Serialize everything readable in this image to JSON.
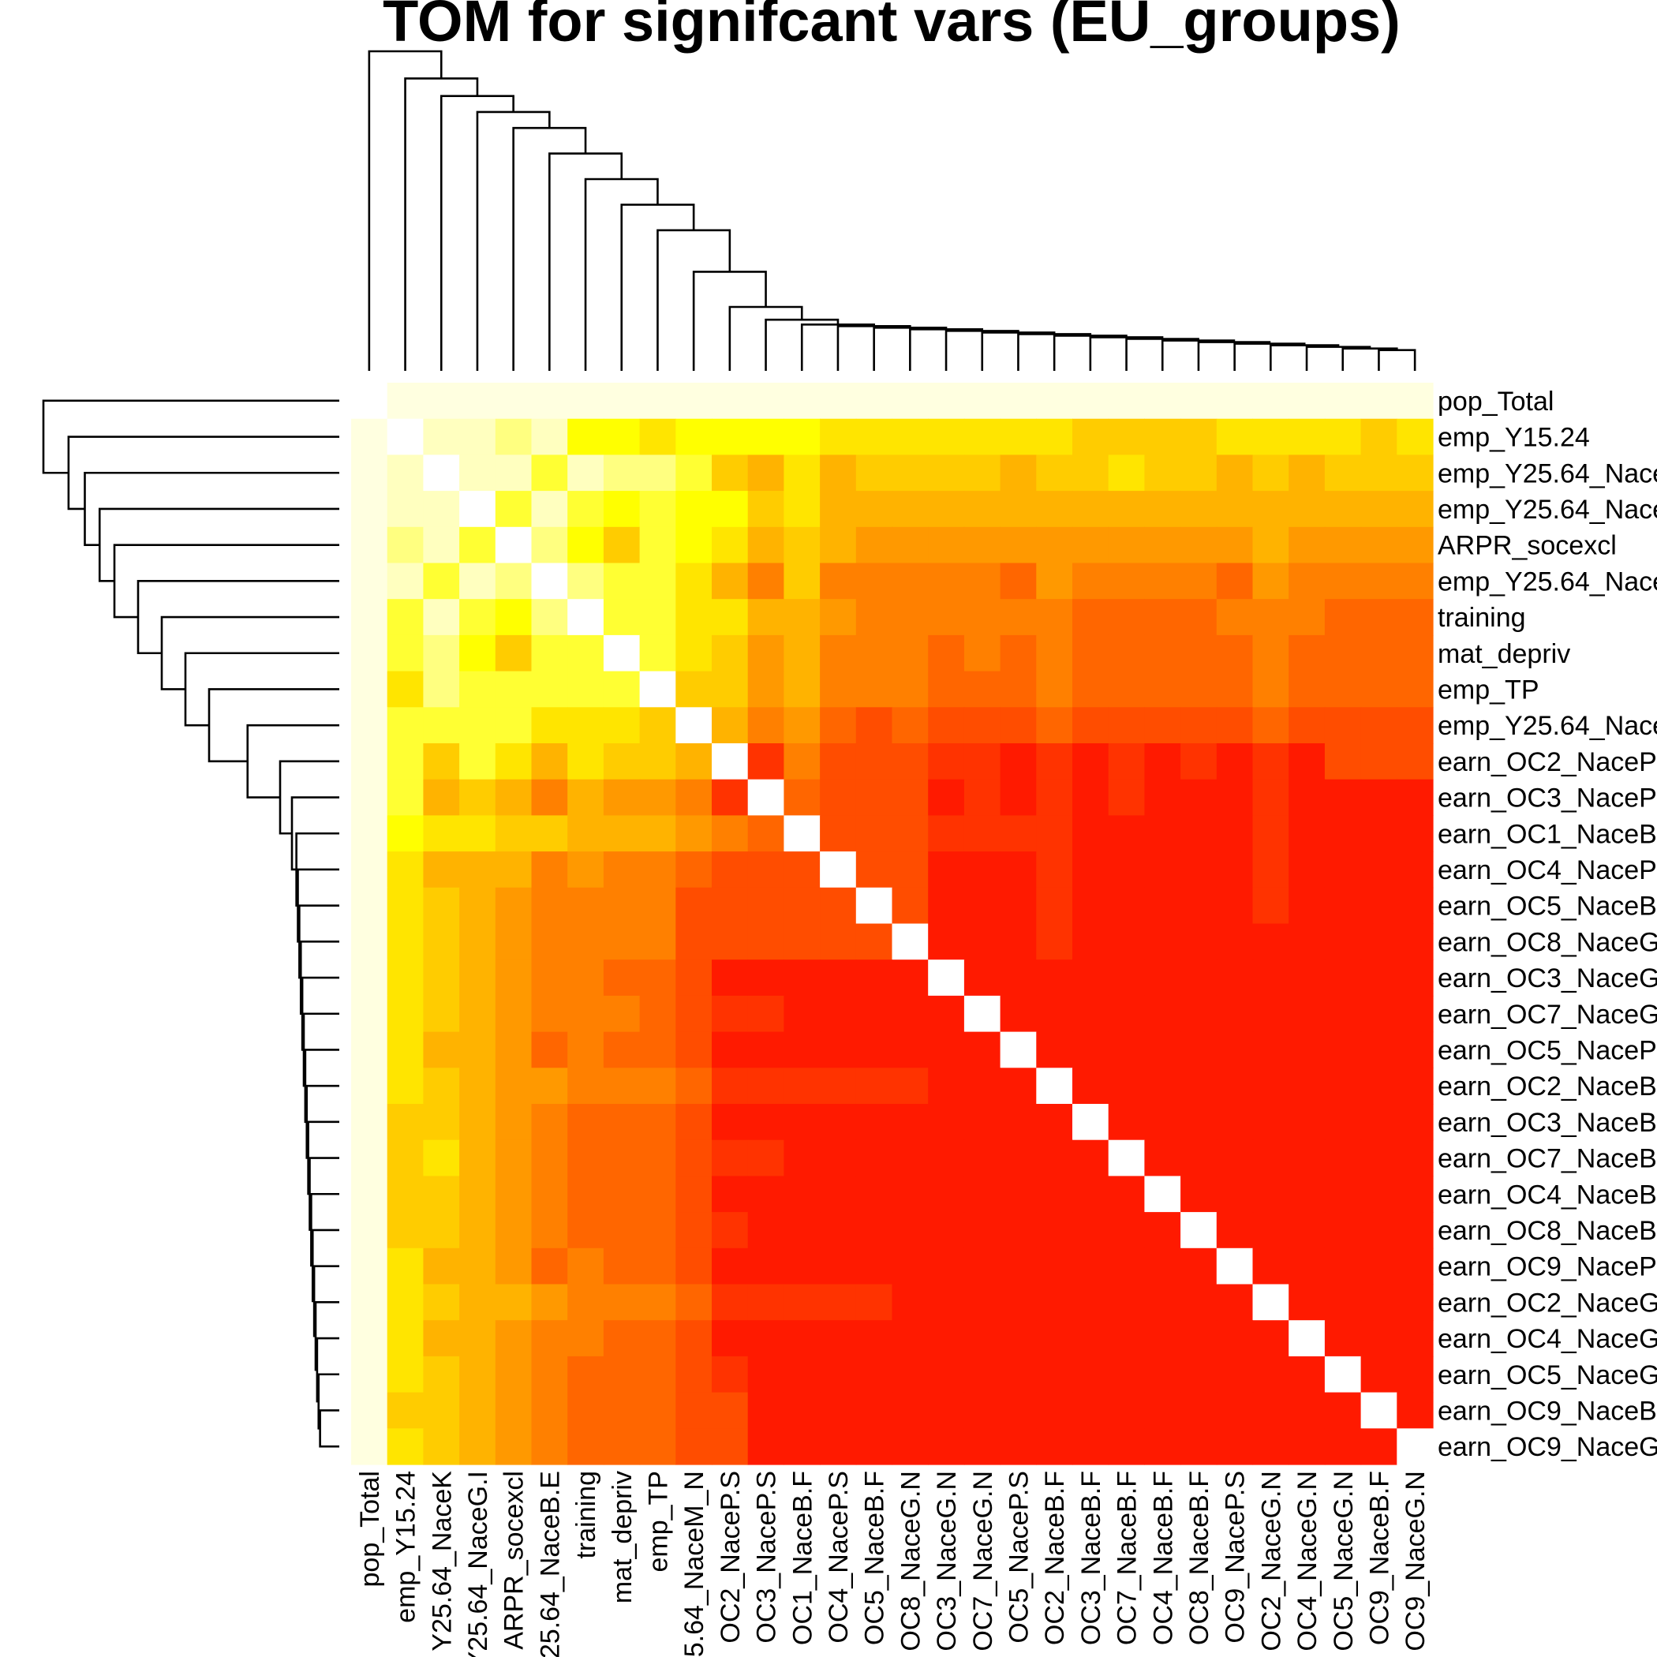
{
  "chart_data": {
    "type": "heatmap",
    "title": "TOM for signifcant vars (EU_groups)",
    "row_labels": [
      "pop_Total",
      "emp_Y15.24",
      "emp_Y25.64_Nace",
      "emp_Y25.64_Nace",
      "ARPR_socexcl",
      "emp_Y25.64_Nace",
      "training",
      "mat_depriv",
      "emp_TP",
      "emp_Y25.64_Nace",
      "earn_OC2_NaceP",
      "earn_OC3_NaceP",
      "earn_OC1_NaceB",
      "earn_OC4_NaceP",
      "earn_OC5_NaceB",
      "earn_OC8_NaceG",
      "earn_OC3_NaceG",
      "earn_OC7_NaceG",
      "earn_OC5_NaceP",
      "earn_OC2_NaceB",
      "earn_OC3_NaceB",
      "earn_OC7_NaceB",
      "earn_OC4_NaceB",
      "earn_OC8_NaceB",
      "earn_OC9_NaceP",
      "earn_OC2_NaceG",
      "earn_OC4_NaceG",
      "earn_OC5_NaceG",
      "earn_OC9_NaceB",
      "earn_OC9_NaceG"
    ],
    "col_labels": [
      "pop_Total",
      "emp_Y15.24",
      "Y25.64_NaceK",
      "Y25.64_NaceG.I",
      "ARPR_socexcl",
      "25.64_NaceB.E",
      "training",
      "mat_depriv",
      "emp_TP",
      "5.64_NaceM_N",
      "OC2_NaceP.S",
      "OC3_NaceP.S",
      "OC1_NaceB.F",
      "OC4_NaceP.S",
      "OC5_NaceB.F",
      "OC8_NaceG.N",
      "OC3_NaceG.N",
      "OC7_NaceG.N",
      "OC5_NaceP.S",
      "OC2_NaceB.F",
      "OC3_NaceB.F",
      "OC7_NaceB.F",
      "OC4_NaceB.F",
      "OC8_NaceB.F",
      "OC9_NaceP.S",
      "OC2_NaceG.N",
      "OC4_NaceG.N",
      "OC5_NaceG.N",
      "OC9_NaceB.F",
      "OC9_NaceG.N"
    ],
    "color_scale": [
      "#FF0000",
      "#FF1A00",
      "#FF3300",
      "#FF4D00",
      "#FF6600",
      "#FF8000",
      "#FF9900",
      "#FFB300",
      "#FFCC00",
      "#FFE500",
      "#FFFF00",
      "#FFFF33",
      "#FFFF80",
      "#FFFFBF",
      "#FFFFE0",
      "#FFFFFF"
    ],
    "levels": [
      [
        15,
        14,
        14,
        14,
        14,
        14,
        14,
        14,
        14,
        14,
        14,
        14,
        14,
        14,
        14,
        14,
        14,
        14,
        14,
        14,
        14,
        14,
        14,
        14,
        14,
        14,
        14,
        14,
        14,
        14
      ],
      [
        14,
        15,
        13,
        13,
        12,
        13,
        10,
        10,
        9,
        10,
        10,
        10,
        10,
        9,
        9,
        9,
        9,
        9,
        9,
        9,
        8,
        8,
        8,
        8,
        9,
        9,
        9,
        9,
        8,
        9
      ],
      [
        14,
        13,
        15,
        13,
        13,
        11,
        13,
        12,
        12,
        11,
        8,
        7,
        9,
        7,
        8,
        8,
        8,
        8,
        7,
        8,
        8,
        9,
        8,
        8,
        7,
        8,
        7,
        8,
        8,
        8
      ],
      [
        14,
        13,
        13,
        15,
        11,
        13,
        11,
        10,
        11,
        10,
        10,
        8,
        9,
        7,
        7,
        7,
        7,
        7,
        7,
        7,
        7,
        7,
        7,
        7,
        7,
        7,
        7,
        7,
        7,
        7
      ],
      [
        14,
        12,
        13,
        11,
        15,
        12,
        10,
        8,
        11,
        10,
        9,
        7,
        8,
        7,
        6,
        6,
        6,
        6,
        6,
        6,
        6,
        6,
        6,
        6,
        6,
        7,
        6,
        6,
        6,
        6
      ],
      [
        14,
        13,
        11,
        13,
        12,
        15,
        12,
        11,
        11,
        9,
        7,
        5,
        8,
        5,
        5,
        5,
        5,
        5,
        4,
        6,
        5,
        5,
        5,
        5,
        4,
        6,
        5,
        5,
        5,
        5
      ],
      [
        14,
        11,
        13,
        11,
        10,
        12,
        15,
        11,
        11,
        9,
        9,
        7,
        7,
        6,
        5,
        5,
        5,
        5,
        5,
        5,
        4,
        4,
        4,
        4,
        5,
        5,
        5,
        4,
        4,
        4
      ],
      [
        14,
        11,
        12,
        10,
        8,
        11,
        11,
        15,
        11,
        9,
        8,
        6,
        7,
        5,
        5,
        5,
        4,
        5,
        4,
        5,
        4,
        4,
        4,
        4,
        4,
        5,
        4,
        4,
        4,
        4
      ],
      [
        14,
        9,
        12,
        11,
        11,
        11,
        11,
        11,
        15,
        8,
        8,
        6,
        7,
        5,
        5,
        5,
        4,
        4,
        4,
        5,
        4,
        4,
        4,
        4,
        4,
        5,
        4,
        4,
        4,
        4
      ],
      [
        14,
        11,
        11,
        11,
        11,
        9,
        9,
        9,
        8,
        15,
        7,
        5,
        6,
        4,
        3,
        4,
        3,
        3,
        3,
        4,
        3,
        3,
        3,
        3,
        3,
        4,
        3,
        3,
        3,
        3
      ],
      [
        14,
        11,
        8,
        11,
        9,
        7,
        9,
        8,
        8,
        7,
        15,
        2,
        5,
        3,
        3,
        3,
        2,
        2,
        1,
        2,
        1,
        2,
        1,
        2,
        1,
        2,
        1,
        3,
        3,
        3
      ],
      [
        14,
        11,
        7,
        8,
        7,
        5,
        7,
        6,
        6,
        5,
        2,
        15,
        4,
        3,
        3,
        3,
        1,
        2,
        1,
        2,
        1,
        2,
        1,
        1,
        1,
        2,
        1,
        1,
        1,
        1
      ],
      [
        14,
        10,
        9,
        9,
        8,
        8,
        7,
        7,
        7,
        6,
        5,
        4,
        15,
        3,
        3,
        3,
        2,
        2,
        2,
        2,
        1,
        1,
        1,
        1,
        1,
        2,
        1,
        1,
        1,
        1
      ],
      [
        14,
        9,
        7,
        7,
        7,
        5,
        6,
        5,
        5,
        4,
        3,
        3,
        3,
        15,
        3,
        3,
        1,
        1,
        1,
        2,
        1,
        1,
        1,
        1,
        1,
        2,
        1,
        1,
        1,
        1
      ],
      [
        14,
        9,
        8,
        7,
        6,
        5,
        5,
        5,
        5,
        3,
        3,
        3,
        3,
        3,
        15,
        3,
        1,
        1,
        1,
        2,
        1,
        1,
        1,
        1,
        1,
        2,
        1,
        1,
        1,
        1
      ],
      [
        14,
        9,
        8,
        7,
        6,
        5,
        5,
        5,
        5,
        3,
        3,
        3,
        3,
        3,
        3,
        15,
        1,
        1,
        1,
        2,
        1,
        1,
        1,
        1,
        1,
        1,
        1,
        1,
        1,
        1
      ],
      [
        14,
        9,
        8,
        7,
        6,
        5,
        5,
        4,
        4,
        3,
        1,
        1,
        1,
        1,
        1,
        1,
        15,
        1,
        1,
        1,
        1,
        1,
        1,
        1,
        1,
        1,
        1,
        1,
        1,
        1
      ],
      [
        14,
        9,
        8,
        7,
        6,
        5,
        5,
        5,
        4,
        3,
        2,
        2,
        1,
        1,
        1,
        1,
        1,
        15,
        1,
        1,
        1,
        1,
        1,
        1,
        1,
        1,
        1,
        1,
        1,
        1
      ],
      [
        14,
        9,
        7,
        7,
        6,
        4,
        5,
        4,
        4,
        3,
        1,
        1,
        1,
        1,
        1,
        1,
        1,
        1,
        15,
        1,
        1,
        1,
        1,
        1,
        1,
        1,
        1,
        1,
        1,
        1
      ],
      [
        14,
        9,
        8,
        7,
        6,
        6,
        5,
        5,
        5,
        4,
        2,
        2,
        2,
        2,
        2,
        2,
        1,
        1,
        1,
        15,
        1,
        1,
        1,
        1,
        1,
        1,
        1,
        1,
        1,
        1
      ],
      [
        14,
        8,
        8,
        7,
        6,
        5,
        4,
        4,
        4,
        3,
        1,
        1,
        1,
        1,
        1,
        1,
        1,
        1,
        1,
        1,
        15,
        1,
        1,
        1,
        1,
        1,
        1,
        1,
        1,
        1
      ],
      [
        14,
        8,
        9,
        7,
        6,
        5,
        4,
        4,
        4,
        3,
        2,
        2,
        1,
        1,
        1,
        1,
        1,
        1,
        1,
        1,
        1,
        15,
        1,
        1,
        1,
        1,
        1,
        1,
        1,
        1
      ],
      [
        14,
        8,
        8,
        7,
        6,
        5,
        4,
        4,
        4,
        3,
        1,
        1,
        1,
        1,
        1,
        1,
        1,
        1,
        1,
        1,
        1,
        1,
        15,
        1,
        1,
        1,
        1,
        1,
        1,
        1
      ],
      [
        14,
        8,
        8,
        7,
        6,
        5,
        4,
        4,
        4,
        3,
        2,
        1,
        1,
        1,
        1,
        1,
        1,
        1,
        1,
        1,
        1,
        1,
        1,
        15,
        1,
        1,
        1,
        1,
        1,
        1
      ],
      [
        14,
        9,
        7,
        7,
        6,
        4,
        5,
        4,
        4,
        3,
        1,
        1,
        1,
        1,
        1,
        1,
        1,
        1,
        1,
        1,
        1,
        1,
        1,
        1,
        15,
        1,
        1,
        1,
        1,
        1
      ],
      [
        14,
        9,
        8,
        7,
        7,
        6,
        5,
        5,
        5,
        4,
        2,
        2,
        2,
        2,
        2,
        1,
        1,
        1,
        1,
        1,
        1,
        1,
        1,
        1,
        1,
        15,
        1,
        1,
        1,
        1
      ],
      [
        14,
        9,
        7,
        7,
        6,
        5,
        5,
        4,
        4,
        3,
        1,
        1,
        1,
        1,
        1,
        1,
        1,
        1,
        1,
        1,
        1,
        1,
        1,
        1,
        1,
        1,
        15,
        1,
        1,
        1
      ],
      [
        14,
        9,
        8,
        7,
        6,
        5,
        4,
        4,
        4,
        3,
        2,
        1,
        1,
        1,
        1,
        1,
        1,
        1,
        1,
        1,
        1,
        1,
        1,
        1,
        1,
        1,
        1,
        15,
        1,
        1
      ],
      [
        14,
        8,
        8,
        7,
        6,
        5,
        4,
        4,
        4,
        3,
        3,
        1,
        1,
        1,
        1,
        1,
        1,
        1,
        1,
        1,
        1,
        1,
        1,
        1,
        1,
        1,
        1,
        1,
        15,
        1
      ],
      [
        14,
        9,
        8,
        7,
        6,
        5,
        4,
        4,
        4,
        3,
        3,
        1,
        1,
        1,
        1,
        1,
        1,
        1,
        1,
        1,
        1,
        1,
        1,
        1,
        1,
        1,
        1,
        1,
        1,
        15
      ]
    ],
    "dendrogram": {
      "leaves": 30,
      "merges": [
        [
          28,
          29,
          0.065
        ],
        [
          27,
          30,
          0.07
        ],
        [
          26,
          31,
          0.075
        ],
        [
          25,
          32,
          0.08
        ],
        [
          24,
          33,
          0.085
        ],
        [
          23,
          34,
          0.09
        ],
        [
          22,
          35,
          0.095
        ],
        [
          21,
          36,
          0.1
        ],
        [
          20,
          37,
          0.105
        ],
        [
          19,
          38,
          0.11
        ],
        [
          18,
          39,
          0.115
        ],
        [
          17,
          40,
          0.12
        ],
        [
          16,
          41,
          0.125
        ],
        [
          15,
          42,
          0.13
        ],
        [
          14,
          43,
          0.135
        ],
        [
          13,
          44,
          0.14
        ],
        [
          12,
          45,
          0.145
        ],
        [
          11,
          46,
          0.16
        ],
        [
          10,
          47,
          0.2
        ],
        [
          9,
          48,
          0.31
        ],
        [
          8,
          49,
          0.44
        ],
        [
          7,
          50,
          0.52
        ],
        [
          6,
          51,
          0.6
        ],
        [
          5,
          52,
          0.68
        ],
        [
          4,
          53,
          0.76
        ],
        [
          3,
          54,
          0.81
        ],
        [
          2,
          55,
          0.86
        ],
        [
          1,
          56,
          0.915
        ],
        [
          0,
          57,
          1.0
        ]
      ]
    }
  }
}
